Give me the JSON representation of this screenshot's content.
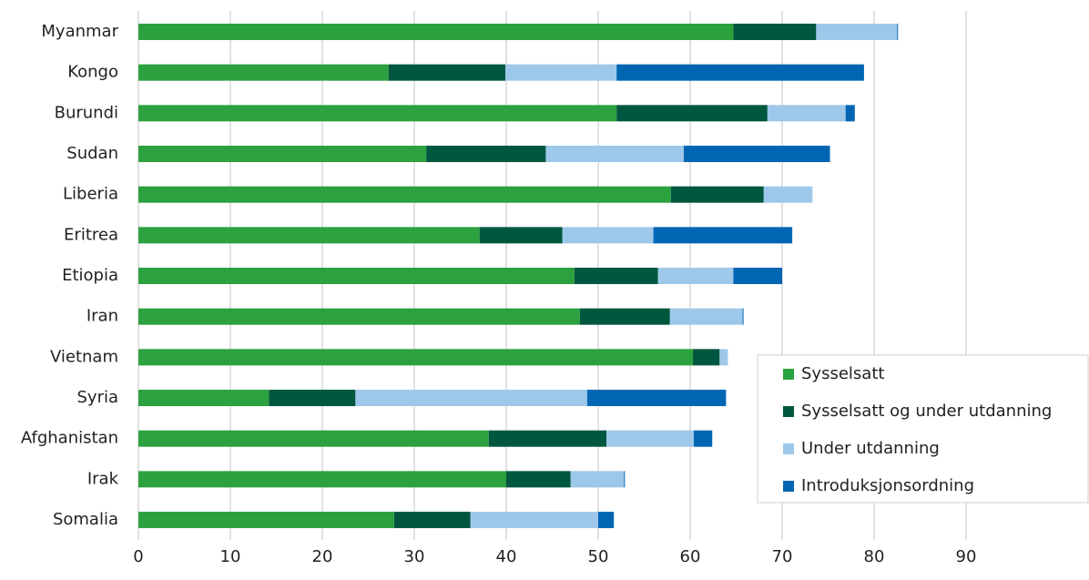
{
  "chart_data": {
    "type": "stacked-bar-horizontal",
    "categories": [
      "Myanmar",
      "Kongo",
      "Burundi",
      "Sudan",
      "Liberia",
      "Eritrea",
      "Etiopia",
      "Iran",
      "Vietnam",
      "Syria",
      "Afghanistan",
      "Irak",
      "Somalia"
    ],
    "series": [
      {
        "name": "Sysselsatt",
        "color": "#2ca13f",
        "values": [
          64.7,
          27.2,
          52.0,
          31.3,
          57.9,
          37.1,
          47.4,
          48.0,
          60.3,
          14.2,
          38.1,
          40.0,
          27.8
        ]
      },
      {
        "name": "Sysselsatt og under utdanning",
        "color": "#00573f",
        "values": [
          9.0,
          12.7,
          16.4,
          13.0,
          10.1,
          9.0,
          9.1,
          9.8,
          2.9,
          9.4,
          12.8,
          7.0,
          8.3
        ]
      },
      {
        "name": "Under utdanning",
        "color": "#9dc8ea",
        "values": [
          8.8,
          12.1,
          8.5,
          15.0,
          5.3,
          9.9,
          8.2,
          7.9,
          0.9,
          25.2,
          9.5,
          5.8,
          13.9
        ]
      },
      {
        "name": "Introduksjonsordning",
        "color": "#0066b3",
        "values": [
          0.1,
          26.9,
          1.0,
          15.9,
          null,
          15.1,
          5.3,
          0.1,
          null,
          15.1,
          2.0,
          0.1,
          1.7
        ]
      }
    ],
    "xlim": [
      0,
      90
    ],
    "xticks": [
      0,
      10,
      20,
      30,
      40,
      50,
      60,
      70,
      80,
      90
    ],
    "grid": true,
    "legend": "lower right"
  }
}
